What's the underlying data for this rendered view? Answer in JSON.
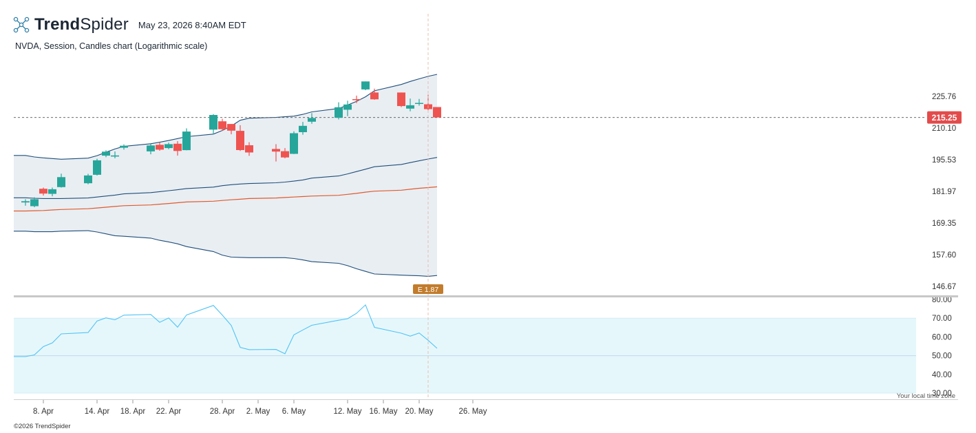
{
  "brand": {
    "name_bold": "Trend",
    "name_light": "Spider",
    "logo_icon": "trendspider-logo-icon"
  },
  "header": {
    "datetime": "May 23, 2026 8:40AM EDT"
  },
  "chart_title": "NVDA, Session, Candles chart (Logarithmic scale)",
  "timezone_note": "Your local time zone",
  "copyright": "©2026 TrendSpider",
  "colors": {
    "up": "#26a69a",
    "down": "#ef5350",
    "band_line": "#1f4e79",
    "band_fill": "#e9eef3",
    "mid_ma": "#e05a2b",
    "rsi_line": "#4fc3f7",
    "rsi_fill": "#e6f7fb",
    "price_badge": "#e34b4b",
    "earnings_badge": "#c27c2c"
  },
  "chart_data": [
    {
      "type": "candlestick",
      "scale": "log",
      "ylim": [
        144,
        248
      ],
      "x_ticks": [
        "8. Apr",
        "14. Apr",
        "18. Apr",
        "22. Apr",
        "28. Apr",
        "2. May",
        "6. May",
        "12. May",
        "16. May",
        "20. May",
        "26. May"
      ],
      "y_ticks": [
        146.67,
        157.6,
        169.35,
        181.97,
        195.53,
        210.1,
        225.76
      ],
      "y_tick_labels": [
        "146.67",
        "157.60",
        "169.35",
        "181.97",
        "195.53",
        "210.10",
        "225.76"
      ],
      "x": [
        "2026-04-06",
        "2026-04-07",
        "2026-04-08",
        "2026-04-09",
        "2026-04-10",
        "2026-04-13",
        "2026-04-14",
        "2026-04-15",
        "2026-04-16",
        "2026-04-17",
        "2026-04-20",
        "2026-04-21",
        "2026-04-22",
        "2026-04-23",
        "2026-04-24",
        "2026-04-27",
        "2026-04-28",
        "2026-04-29",
        "2026-04-30",
        "2026-05-01",
        "2026-05-04",
        "2026-05-05",
        "2026-05-06",
        "2026-05-07",
        "2026-05-08",
        "2026-05-11",
        "2026-05-12",
        "2026-05-13",
        "2026-05-14",
        "2026-05-15",
        "2026-05-18",
        "2026-05-19",
        "2026-05-20",
        "2026-05-21",
        "2026-05-22"
      ],
      "ohlc": [
        [
          177.5,
          178.8,
          176.2,
          178.0
        ],
        [
          176.0,
          179.6,
          175.6,
          178.8
        ],
        [
          183.1,
          183.6,
          180.3,
          181.1
        ],
        [
          181.0,
          183.6,
          180.0,
          182.9
        ],
        [
          183.8,
          189.5,
          183.6,
          188.0
        ],
        [
          185.4,
          189.4,
          185.0,
          188.7
        ],
        [
          189.0,
          196.0,
          188.7,
          195.3
        ],
        [
          197.4,
          199.8,
          196.7,
          199.2
        ],
        [
          197.0,
          199.3,
          196.2,
          197.5
        ],
        [
          201.0,
          202.5,
          200.1,
          201.9
        ],
        [
          199.3,
          202.6,
          198.0,
          202.0
        ],
        [
          202.3,
          203.3,
          199.6,
          200.1
        ],
        [
          200.8,
          203.3,
          200.3,
          202.6
        ],
        [
          202.8,
          204.0,
          197.4,
          199.5
        ],
        [
          199.9,
          210.0,
          199.8,
          208.5
        ],
        [
          209.4,
          216.9,
          207.2,
          216.5
        ],
        [
          213.4,
          214.6,
          208.8,
          209.6
        ],
        [
          212.1,
          212.1,
          207.2,
          208.9
        ],
        [
          208.8,
          211.5,
          199.5,
          199.9
        ],
        [
          202.1,
          203.5,
          197.3,
          198.8
        ],
        [
          200.4,
          202.6,
          194.8,
          199.2
        ],
        [
          199.4,
          200.8,
          196.2,
          196.6
        ],
        [
          198.2,
          208.6,
          198.1,
          207.7
        ],
        [
          208.2,
          213.1,
          207.0,
          211.2
        ],
        [
          213.2,
          217.4,
          212.2,
          215.0
        ],
        [
          215.1,
          222.8,
          214.3,
          220.3
        ],
        [
          219.1,
          223.6,
          215.9,
          221.7
        ],
        [
          224.4,
          226.2,
          222.4,
          223.9
        ],
        [
          229.4,
          233.6,
          229.0,
          233.6
        ],
        [
          227.8,
          229.8,
          224.1,
          224.3
        ],
        [
          227.8,
          227.8,
          220.4,
          220.9
        ],
        [
          219.6,
          224.7,
          218.3,
          221.3
        ],
        [
          222.2,
          224.5,
          221.1,
          222.5
        ],
        [
          221.8,
          226.7,
          218.8,
          219.4
        ],
        [
          220.4,
          220.4,
          215.25,
          215.25
        ]
      ],
      "bollinger": {
        "upper": [
          197.5,
          196.8,
          196.4,
          196.1,
          195.8,
          196.3,
          197.4,
          198.9,
          200.4,
          201.6,
          202.8,
          203.5,
          204.3,
          205.2,
          206.1,
          207.3,
          209.0,
          211.1,
          213.9,
          214.9,
          215.3,
          215.6,
          215.9,
          216.8,
          218.0,
          219.7,
          221.4,
          223.3,
          225.6,
          228.7,
          232.0,
          233.6,
          235.0,
          236.3,
          237.4
        ],
        "middle": [
          179.4,
          179.2,
          179.1,
          179.1,
          179.1,
          179.3,
          179.7,
          180.1,
          180.5,
          181.0,
          181.5,
          181.9,
          182.3,
          182.7,
          183.2,
          183.8,
          184.4,
          184.8,
          185.1,
          185.3,
          185.6,
          185.9,
          186.3,
          186.8,
          187.6,
          188.5,
          189.4,
          190.4,
          191.4,
          192.5,
          193.5,
          194.3,
          195.1,
          195.9,
          196.6
        ],
        "lower": [
          166.3,
          166.1,
          166.1,
          166.1,
          166.3,
          166.5,
          166.0,
          165.3,
          164.6,
          164.4,
          163.7,
          162.9,
          162.3,
          161.6,
          160.6,
          158.8,
          157.5,
          156.8,
          156.7,
          156.6,
          156.6,
          156.6,
          156.3,
          155.8,
          155.2,
          154.6,
          153.8,
          152.7,
          151.8,
          150.9,
          150.5,
          150.4,
          150.3,
          150.1,
          150.4
        ]
      },
      "ma": [
        174.1,
        174.2,
        174.3,
        174.5,
        174.7,
        175.0,
        175.3,
        175.6,
        175.9,
        176.2,
        176.5,
        176.8,
        177.1,
        177.4,
        177.7,
        178.0,
        178.3,
        178.6,
        178.8,
        179.1,
        179.3,
        179.5,
        179.7,
        179.9,
        180.1,
        180.4,
        180.8,
        181.2,
        181.7,
        182.1,
        182.5,
        182.9,
        183.3,
        183.6,
        183.9
      ],
      "last_price": 215.25,
      "last_price_label": "215.25",
      "earnings_label": "E 1.87",
      "earnings_index": 33
    },
    {
      "type": "line",
      "ylim": [
        30,
        80
      ],
      "y_ticks": [
        30,
        40,
        50,
        60,
        70,
        80
      ],
      "y_tick_labels": [
        "30.00",
        "40.00",
        "50.00",
        "60.00",
        "70.00",
        "80.00"
      ],
      "band": [
        30,
        70
      ],
      "midline": 50,
      "values": [
        49.5,
        50.4,
        54.8,
        56.8,
        61.6,
        62.3,
        68.5,
        70.2,
        69.1,
        71.6,
        72.0,
        67.8,
        70.1,
        65.2,
        71.7,
        76.8,
        71.6,
        66.1,
        54.4,
        53.2,
        53.3,
        51.0,
        61.1,
        63.7,
        66.2,
        68.9,
        69.7,
        72.6,
        77.1,
        65.1,
        62.0,
        60.4,
        62.1,
        58.2,
        53.9
      ]
    }
  ]
}
